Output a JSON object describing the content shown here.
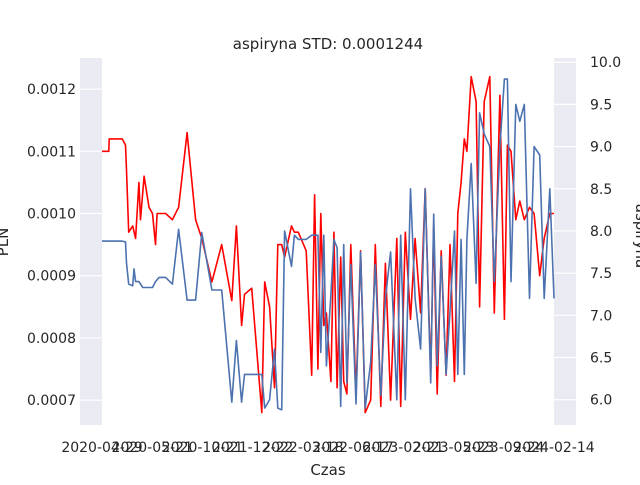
{
  "chart_data": {
    "type": "line",
    "title": "aspiryna STD: 0.0001244",
    "xlabel": "Czas",
    "ylabel_left": "PLN",
    "ylabel_right": "aspiryna",
    "x_tick_labels": [
      "2020-04-29",
      "2020-05-21",
      "2020-10-21",
      "2021-12-22",
      "2022-03-18",
      "2022-06-17",
      "2023-02-21",
      "2023-05-23",
      "2023-09-24",
      "2024-02-14"
    ],
    "x_date_range": [
      "2020-04-29",
      "2024-02-14"
    ],
    "ylim_left": [
      0.00066,
      0.00125
    ],
    "yticks_left": [
      0.0007,
      0.0008,
      0.0009,
      0.001,
      0.0011,
      0.0012
    ],
    "ytick_labels_left": [
      "0.0007",
      "0.0008",
      "0.0009",
      "0.0010",
      "0.0011",
      "0.0012"
    ],
    "ylim_right": [
      5.7,
      10.05
    ],
    "yticks_right": [
      6.0,
      6.5,
      7.0,
      7.5,
      8.0,
      8.5,
      9.0,
      9.5,
      10.0
    ],
    "ytick_labels_right": [
      "6.0",
      "6.5",
      "7.0",
      "7.5",
      "8.0",
      "8.5",
      "9.0",
      "9.5",
      "10.0"
    ],
    "series": [
      {
        "axis": "left",
        "color": "#ff0000",
        "x": [
          "2020-04-29",
          "2020-05-20",
          "2020-05-21",
          "2020-06-30",
          "2020-07-10",
          "2020-07-13",
          "2020-07-20",
          "2020-08-01",
          "2020-08-10",
          "2020-08-20",
          "2020-08-25",
          "2020-09-05",
          "2020-09-20",
          "2020-10-01",
          "2020-10-10",
          "2020-10-15",
          "2020-10-21",
          "2020-11-10",
          "2020-12-01",
          "2020-12-20",
          "2021-01-15",
          "2021-02-10",
          "2021-03-01",
          "2021-04-01",
          "2021-05-01",
          "2021-06-01",
          "2021-06-15",
          "2021-07-01",
          "2021-07-10",
          "2021-08-01",
          "2021-09-01",
          "2021-09-10",
          "2021-09-25",
          "2021-10-10",
          "2021-10-20",
          "2021-11-01",
          "2021-11-10",
          "2021-12-01",
          "2021-12-10",
          "2021-12-22",
          "2022-01-15",
          "2022-02-01",
          "2022-02-10",
          "2022-02-20",
          "2022-03-01",
          "2022-03-10",
          "2022-03-18",
          "2022-04-01",
          "2022-04-10",
          "2022-04-20",
          "2022-05-01",
          "2022-05-10",
          "2022-05-20",
          "2022-06-01",
          "2022-06-17",
          "2022-07-01",
          "2022-07-15",
          "2022-08-01",
          "2022-08-15",
          "2022-09-01",
          "2022-09-15",
          "2022-10-01",
          "2022-10-20",
          "2022-11-01",
          "2022-11-15",
          "2022-12-01",
          "2022-12-15",
          "2023-01-01",
          "2023-01-15",
          "2023-02-01",
          "2023-02-10",
          "2023-02-21",
          "2023-03-05",
          "2023-03-20",
          "2023-04-01",
          "2023-04-15",
          "2023-04-25",
          "2023-05-05",
          "2023-05-15",
          "2023-05-23",
          "2023-06-05",
          "2023-06-20",
          "2023-07-01",
          "2023-07-15",
          "2023-08-01",
          "2023-08-15",
          "2023-09-01",
          "2023-09-15",
          "2023-09-24",
          "2023-10-05",
          "2023-10-20",
          "2023-11-01",
          "2023-11-15",
          "2023-12-01",
          "2023-12-15",
          "2024-01-01",
          "2024-01-15",
          "2024-02-01",
          "2024-02-14"
        ],
        "values": [
          0.0011,
          0.0011,
          0.00112,
          0.00112,
          0.00111,
          0.00107,
          0.00097,
          0.00098,
          0.00096,
          0.00105,
          0.00099,
          0.00106,
          0.00101,
          0.001,
          0.00095,
          0.001,
          0.001,
          0.001,
          0.00099,
          0.00101,
          0.00113,
          0.00099,
          0.00096,
          0.00089,
          0.00095,
          0.00086,
          0.00098,
          0.00082,
          0.00087,
          0.00088,
          0.00068,
          0.00089,
          0.00085,
          0.00072,
          0.00095,
          0.00095,
          0.00093,
          0.00098,
          0.00097,
          0.00097,
          0.00094,
          0.00074,
          0.00103,
          0.00075,
          0.001,
          0.00082,
          0.00084,
          0.00073,
          0.00097,
          0.00072,
          0.00093,
          0.00073,
          0.00071,
          0.00095,
          0.00071,
          0.00094,
          0.00068,
          0.0007,
          0.00095,
          0.00069,
          0.00092,
          0.0007,
          0.00096,
          0.00069,
          0.00097,
          0.00083,
          0.00096,
          0.00084,
          0.00104,
          0.00074,
          0.00098,
          0.00071,
          0.00094,
          0.00074,
          0.00095,
          0.00073,
          0.001,
          0.00105,
          0.00112,
          0.0011,
          0.00122,
          0.00118,
          0.00085,
          0.00118,
          0.00122,
          0.00084,
          0.00119,
          0.00083,
          0.00111,
          0.0011,
          0.00099,
          0.00102,
          0.00099,
          0.00101,
          0.001,
          0.0009,
          0.00096,
          0.001,
          0.001
        ]
      },
      {
        "axis": "right",
        "color": "#4c72b0",
        "x": [
          "2020-04-29",
          "2020-06-30",
          "2020-07-10",
          "2020-07-13",
          "2020-07-20",
          "2020-08-01",
          "2020-08-05",
          "2020-08-10",
          "2020-08-20",
          "2020-09-01",
          "2020-10-01",
          "2020-10-10",
          "2020-10-21",
          "2020-11-10",
          "2020-12-01",
          "2020-12-20",
          "2021-01-15",
          "2021-02-10",
          "2021-03-01",
          "2021-04-01",
          "2021-05-01",
          "2021-06-01",
          "2021-06-15",
          "2021-07-01",
          "2021-07-10",
          "2021-08-01",
          "2021-09-01",
          "2021-09-10",
          "2021-09-25",
          "2021-10-10",
          "2021-10-20",
          "2021-11-01",
          "2021-11-10",
          "2021-12-01",
          "2021-12-10",
          "2021-12-22",
          "2022-01-15",
          "2022-02-01",
          "2022-02-10",
          "2022-02-20",
          "2022-03-01",
          "2022-03-10",
          "2022-03-18",
          "2022-04-01",
          "2022-04-10",
          "2022-04-20",
          "2022-05-01",
          "2022-05-10",
          "2022-05-20",
          "2022-06-01",
          "2022-06-17",
          "2022-07-01",
          "2022-07-15",
          "2022-08-01",
          "2022-08-15",
          "2022-09-01",
          "2022-09-15",
          "2022-10-01",
          "2022-10-20",
          "2022-11-01",
          "2022-11-15",
          "2022-12-01",
          "2022-12-15",
          "2023-01-01",
          "2023-01-15",
          "2023-02-01",
          "2023-02-10",
          "2023-02-21",
          "2023-03-05",
          "2023-03-20",
          "2023-04-01",
          "2023-04-15",
          "2023-04-25",
          "2023-05-05",
          "2023-05-15",
          "2023-05-23",
          "2023-06-05",
          "2023-06-20",
          "2023-07-01",
          "2023-07-15",
          "2023-08-01",
          "2023-08-15",
          "2023-09-01",
          "2023-09-15",
          "2023-09-24",
          "2023-10-05",
          "2023-10-20",
          "2023-11-01",
          "2023-11-15",
          "2023-12-01",
          "2023-12-15",
          "2024-01-01",
          "2024-01-15",
          "2024-02-01",
          "2024-02-14"
        ],
        "values": [
          7.88,
          7.88,
          7.87,
          7.62,
          7.37,
          7.35,
          7.55,
          7.4,
          7.4,
          7.33,
          7.33,
          7.4,
          7.45,
          7.45,
          7.37,
          8.02,
          7.18,
          7.18,
          7.98,
          7.3,
          7.3,
          5.97,
          6.7,
          5.97,
          6.3,
          6.3,
          6.3,
          5.9,
          6.0,
          6.6,
          5.9,
          5.88,
          8.0,
          7.58,
          7.95,
          7.9,
          7.9,
          7.95,
          7.95,
          7.95,
          6.56,
          7.95,
          6.4,
          7.25,
          7.9,
          7.8,
          5.92,
          7.84,
          6.2,
          7.6,
          5.95,
          7.75,
          5.9,
          6.45,
          7.6,
          6.05,
          7.2,
          7.75,
          6.0,
          7.95,
          6.0,
          8.5,
          7.2,
          6.6,
          8.5,
          6.2,
          8.2,
          6.4,
          7.7,
          6.3,
          7.05,
          8.0,
          6.3,
          7.9,
          6.3,
          7.9,
          8.8,
          7.38,
          9.4,
          9.15,
          9.0,
          7.4,
          9.0,
          9.8,
          9.8,
          7.4,
          9.5,
          9.3,
          9.5,
          7.2,
          9.0,
          8.9,
          7.2,
          8.5,
          7.2
        ]
      }
    ]
  }
}
